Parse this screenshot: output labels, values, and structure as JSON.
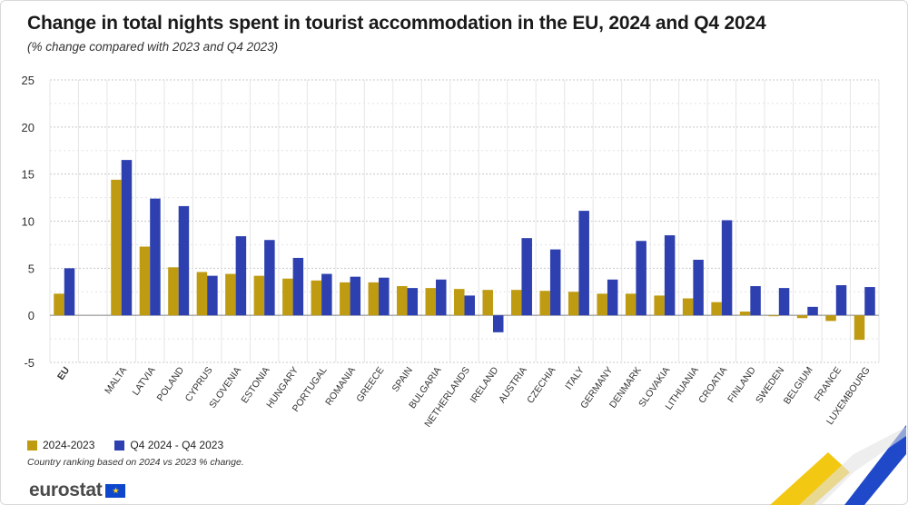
{
  "header": {
    "title": "Change in total nights spent in tourist accommodation in the EU, 2024 and Q4 2024",
    "subtitle": "(% change compared with 2023 and Q4 2023)"
  },
  "legend": {
    "series_a": "2024-2023",
    "series_b": "Q4 2024 - Q4 2023"
  },
  "footnote": "Country ranking based on 2024 vs 2023 % change.",
  "brand": {
    "name": "eurostat"
  },
  "colors": {
    "series_a": "#bf9b12",
    "series_b": "#2e40b0",
    "grid": "#c8c8c8",
    "axis_text": "#333333"
  },
  "chart_data": {
    "type": "bar",
    "categories": [
      "EU",
      "",
      "MALTA",
      "LATVIA",
      "POLAND",
      "CYPRUS",
      "SLOVENIA",
      "ESTONIA",
      "HUNGARY",
      "PORTUGAL",
      "ROMANIA",
      "GREECE",
      "SPAIN",
      "BULGARIA",
      "NETHERLANDS",
      "IRELAND",
      "AUSTRIA",
      "CZECHIA",
      "ITALY",
      "GERMANY",
      "DENMARK",
      "SLOVAKIA",
      "LITHUANIA",
      "CROATIA",
      "FINLAND",
      "SWEDEN",
      "BELGIUM",
      "FRANCE",
      "LUXEMBOURG"
    ],
    "series": [
      {
        "name": "2024-2023",
        "values": [
          2.3,
          null,
          14.4,
          7.3,
          5.1,
          4.6,
          4.4,
          4.2,
          3.9,
          3.7,
          3.5,
          3.5,
          3.1,
          2.9,
          2.8,
          2.7,
          2.7,
          2.6,
          2.5,
          2.3,
          2.3,
          2.1,
          1.8,
          1.4,
          0.4,
          -0.1,
          -0.3,
          -0.6,
          -2.6
        ]
      },
      {
        "name": "Q4 2024 - Q4 2023",
        "values": [
          5.0,
          null,
          16.5,
          12.4,
          11.6,
          4.2,
          8.4,
          8.0,
          6.1,
          4.4,
          4.1,
          4.0,
          2.9,
          3.8,
          2.1,
          -1.8,
          8.2,
          7.0,
          11.1,
          3.8,
          7.9,
          8.5,
          5.9,
          10.1,
          3.1,
          2.9,
          0.9,
          3.2,
          3.0
        ]
      }
    ],
    "ylim": [
      -5,
      25
    ],
    "yticks": [
      -5,
      0,
      5,
      10,
      15,
      20,
      25
    ],
    "grid": true,
    "legend_position": "bottom-left"
  }
}
